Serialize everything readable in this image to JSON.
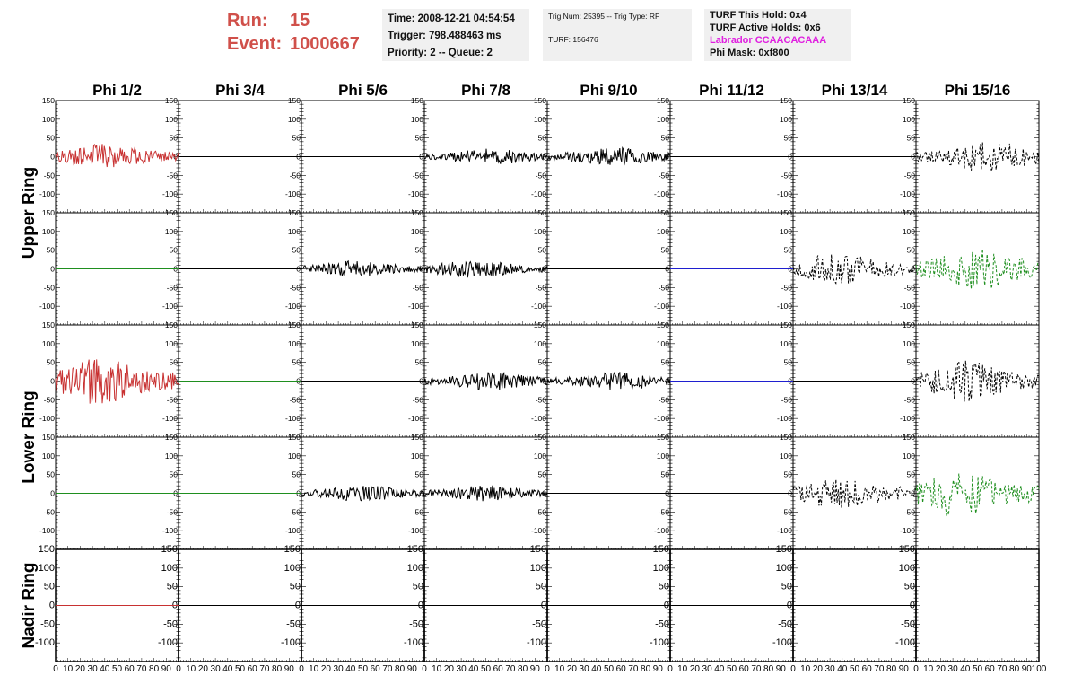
{
  "header": {
    "run_label": "Run:",
    "run_value": "15",
    "event_label": "Event:",
    "event_value": "1000667",
    "time": "Time: 2008-12-21 04:54:54",
    "trigger": "Trigger: 798.488463 ms",
    "priority": "Priority: 2 -- Queue: 2",
    "trig_num": "Trig Num: 25395 -- Trig Type: RF",
    "turf": "TURF: 156476",
    "turf_hold": "TURF This Hold: 0x4",
    "turf_active": "TURF Active Holds: 0x6",
    "labrador": "Labrador CCAACACAAA",
    "phi_mask": "Phi Mask: 0xf800"
  },
  "columns": [
    "Phi 1/2",
    "Phi 3/4",
    "Phi 5/6",
    "Phi 7/8",
    "Phi 9/10",
    "Phi 11/12",
    "Phi 13/14",
    "Phi 15/16"
  ],
  "rows": [
    "Upper Ring",
    "Lower Ring",
    "Nadir Ring"
  ],
  "colors": {
    "red": "#c83232",
    "black": "#000000",
    "green": "#1f8f1f",
    "blue": "#1f1fcf"
  },
  "chart_data": {
    "type": "line",
    "xlim": [
      0,
      100
    ],
    "ylim": [
      -150,
      150
    ],
    "x_ticks": [
      0,
      10,
      20,
      30,
      40,
      50,
      60,
      70,
      80,
      90,
      100
    ],
    "y_ticks": [
      -100,
      -50,
      0,
      50,
      100,
      150
    ],
    "nadir_y_ticks": [
      -100,
      -50,
      0,
      50,
      100,
      150
    ],
    "panels": [
      {
        "row": 0,
        "col": 0,
        "color": "red",
        "style": "solid",
        "amp": 35,
        "peak": 40,
        "npts": 130
      },
      {
        "row": 0,
        "col": 1,
        "color": "black",
        "style": "solid",
        "amp": 0,
        "peak": 50,
        "npts": 2
      },
      {
        "row": 0,
        "col": 2,
        "color": "black",
        "style": "solid",
        "amp": 0,
        "peak": 50,
        "npts": 2
      },
      {
        "row": 0,
        "col": 3,
        "color": "black",
        "style": "solid",
        "amp": 22,
        "peak": 55,
        "npts": 140
      },
      {
        "row": 0,
        "col": 4,
        "color": "black",
        "style": "solid",
        "amp": 25,
        "peak": 55,
        "npts": 140
      },
      {
        "row": 0,
        "col": 5,
        "color": "black",
        "style": "solid",
        "amp": 0,
        "peak": 50,
        "npts": 2
      },
      {
        "row": 0,
        "col": 6,
        "color": "black",
        "style": "solid",
        "amp": 0,
        "peak": 50,
        "npts": 2
      },
      {
        "row": 0,
        "col": 7,
        "color": "black",
        "style": "dashed",
        "amp": 45,
        "peak": 60,
        "npts": 110
      },
      {
        "row": 1,
        "col": 0,
        "color": "green",
        "style": "solid",
        "amp": 0,
        "peak": 50,
        "npts": 2
      },
      {
        "row": 1,
        "col": 1,
        "color": "black",
        "style": "solid",
        "amp": 0,
        "peak": 50,
        "npts": 2
      },
      {
        "row": 1,
        "col": 2,
        "color": "black",
        "style": "solid",
        "amp": 22,
        "peak": 45,
        "npts": 140
      },
      {
        "row": 1,
        "col": 3,
        "color": "black",
        "style": "solid",
        "amp": 25,
        "peak": 40,
        "npts": 140
      },
      {
        "row": 1,
        "col": 4,
        "color": "black",
        "style": "solid",
        "amp": 0,
        "peak": 50,
        "npts": 2
      },
      {
        "row": 1,
        "col": 5,
        "color": "blue",
        "style": "solid",
        "amp": 0,
        "peak": 50,
        "npts": 2
      },
      {
        "row": 1,
        "col": 6,
        "color": "black",
        "style": "dashed",
        "amp": 45,
        "peak": 35,
        "npts": 110
      },
      {
        "row": 1,
        "col": 7,
        "color": "green",
        "style": "dashed",
        "amp": 60,
        "peak": 50,
        "npts": 110
      },
      {
        "row": 2,
        "col": 0,
        "color": "red",
        "style": "solid",
        "amp": 65,
        "peak": 35,
        "npts": 130
      },
      {
        "row": 2,
        "col": 1,
        "color": "green",
        "style": "solid",
        "amp": 0,
        "peak": 50,
        "npts": 2
      },
      {
        "row": 2,
        "col": 2,
        "color": "black",
        "style": "solid",
        "amp": 0,
        "peak": 50,
        "npts": 2
      },
      {
        "row": 2,
        "col": 3,
        "color": "black",
        "style": "solid",
        "amp": 25,
        "peak": 55,
        "npts": 140
      },
      {
        "row": 2,
        "col": 4,
        "color": "black",
        "style": "solid",
        "amp": 25,
        "peak": 60,
        "npts": 140
      },
      {
        "row": 2,
        "col": 5,
        "color": "blue",
        "style": "solid",
        "amp": 0,
        "peak": 50,
        "npts": 2
      },
      {
        "row": 2,
        "col": 6,
        "color": "black",
        "style": "solid",
        "amp": 0,
        "peak": 50,
        "npts": 2
      },
      {
        "row": 2,
        "col": 7,
        "color": "black",
        "style": "dashed",
        "amp": 55,
        "peak": 40,
        "npts": 110
      },
      {
        "row": 3,
        "col": 0,
        "color": "green",
        "style": "solid",
        "amp": 0,
        "peak": 50,
        "npts": 2
      },
      {
        "row": 3,
        "col": 1,
        "color": "green",
        "style": "solid",
        "amp": 0,
        "peak": 50,
        "npts": 2
      },
      {
        "row": 3,
        "col": 2,
        "color": "black",
        "style": "solid",
        "amp": 22,
        "peak": 50,
        "npts": 140
      },
      {
        "row": 3,
        "col": 3,
        "color": "black",
        "style": "solid",
        "amp": 22,
        "peak": 50,
        "npts": 140
      },
      {
        "row": 3,
        "col": 4,
        "color": "black",
        "style": "solid",
        "amp": 0,
        "peak": 50,
        "npts": 2
      },
      {
        "row": 3,
        "col": 5,
        "color": "black",
        "style": "solid",
        "amp": 0,
        "peak": 50,
        "npts": 2
      },
      {
        "row": 3,
        "col": 6,
        "color": "black",
        "style": "dashed",
        "amp": 45,
        "peak": 40,
        "npts": 110
      },
      {
        "row": 3,
        "col": 7,
        "color": "green",
        "style": "dashed",
        "amp": 65,
        "peak": 35,
        "npts": 110
      },
      {
        "row": 4,
        "col": 0,
        "color": "red",
        "style": "solid",
        "amp": 0,
        "peak": 50,
        "npts": 2
      },
      {
        "row": 4,
        "col": 1,
        "color": "black",
        "style": "solid",
        "amp": 0,
        "peak": 50,
        "npts": 2
      },
      {
        "row": 4,
        "col": 2,
        "color": "black",
        "style": "solid",
        "amp": 0,
        "peak": 50,
        "npts": 2
      },
      {
        "row": 4,
        "col": 3,
        "color": "black",
        "style": "solid",
        "amp": 0,
        "peak": 50,
        "npts": 2
      },
      {
        "row": 4,
        "col": 4,
        "color": "black",
        "style": "solid",
        "amp": 0,
        "peak": 50,
        "npts": 2
      },
      {
        "row": 4,
        "col": 5,
        "color": "black",
        "style": "solid",
        "amp": 0,
        "peak": 50,
        "npts": 2
      },
      {
        "row": 4,
        "col": 6,
        "color": "black",
        "style": "solid",
        "amp": 0,
        "peak": 50,
        "npts": 2
      },
      {
        "row": 4,
        "col": 7,
        "color": "none",
        "style": "solid",
        "amp": 0,
        "peak": 50,
        "npts": 0
      }
    ]
  }
}
